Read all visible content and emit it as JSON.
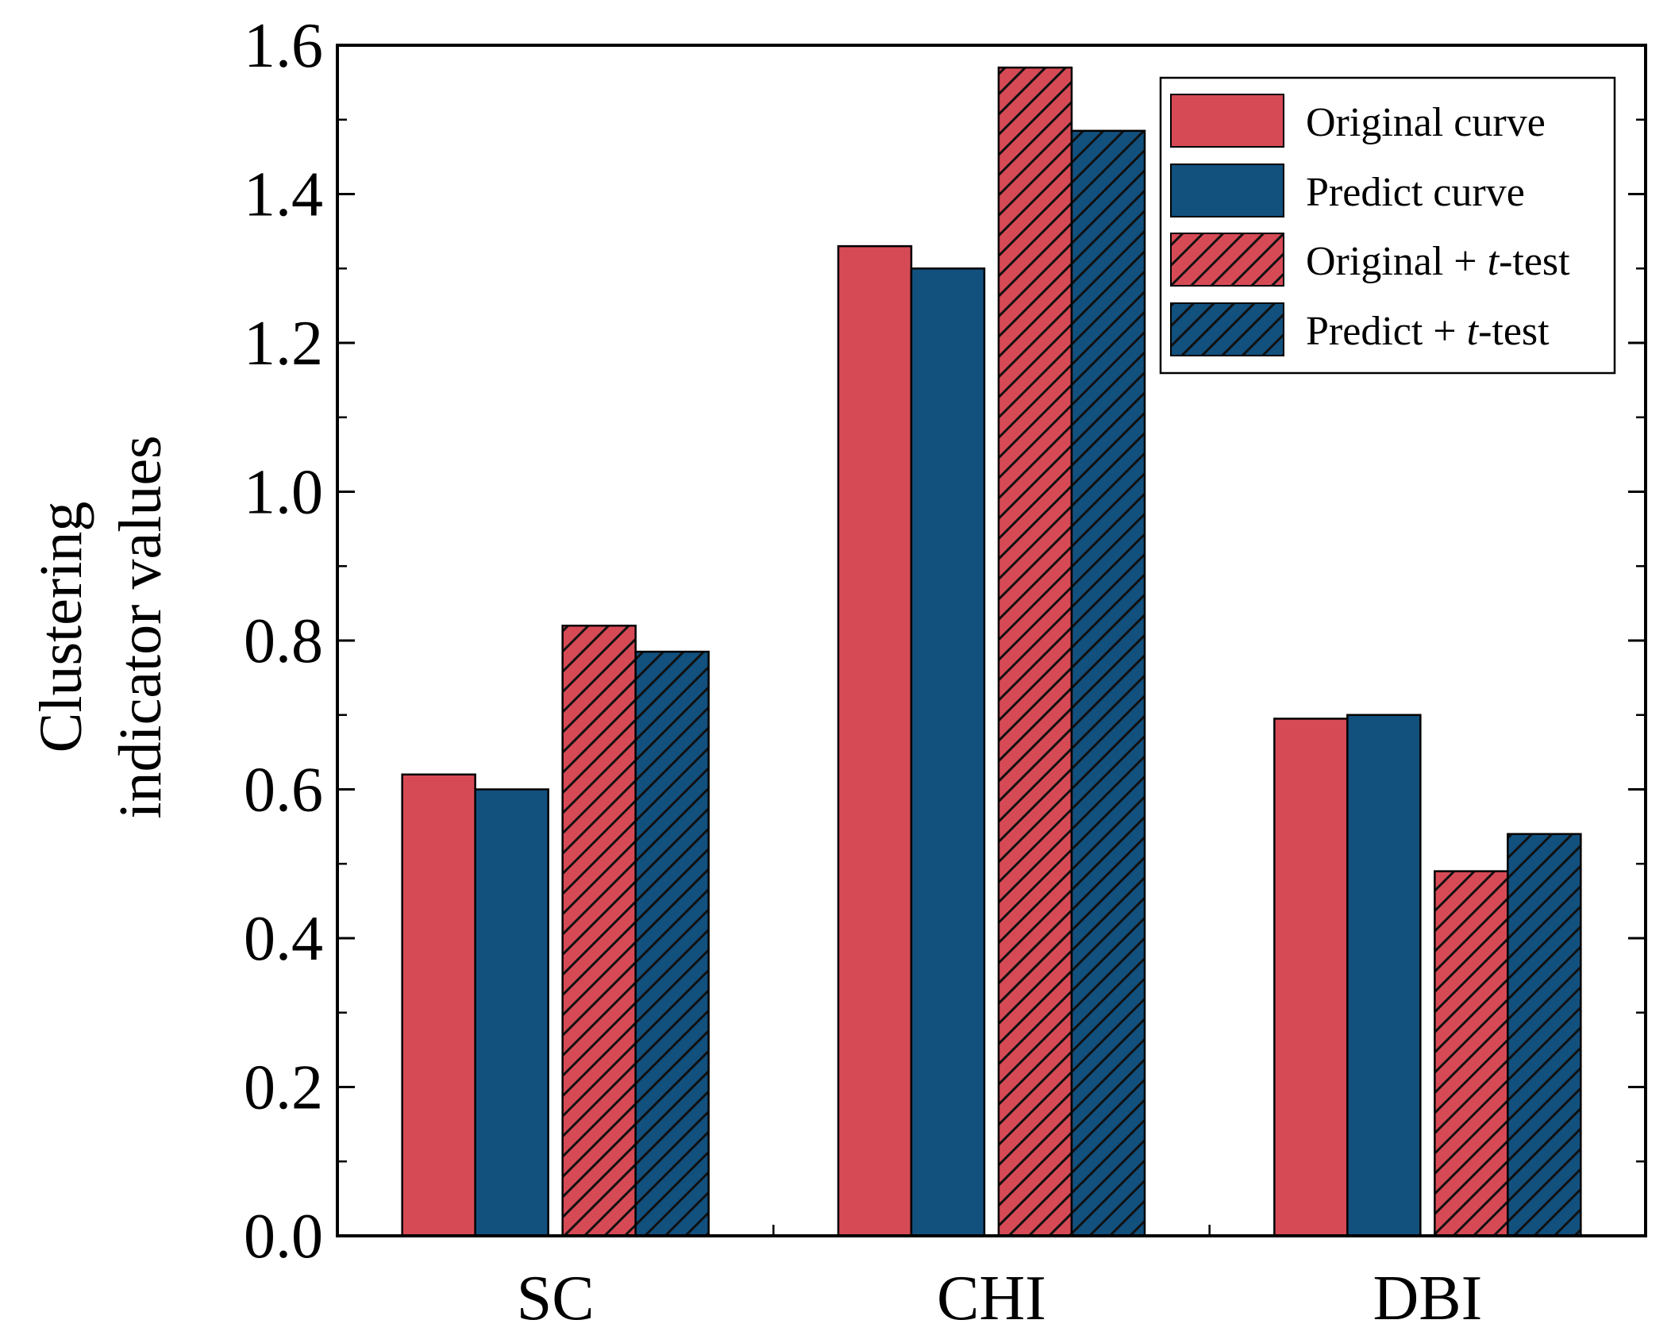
{
  "chart_data": {
    "type": "bar",
    "title": "",
    "xlabel": "",
    "ylabel": [
      "Clustering",
      "indicator values"
    ],
    "categories": [
      "SC",
      "CHI",
      "DBI"
    ],
    "series": [
      {
        "name": "Original curve",
        "legend": [
          "Original curve"
        ],
        "color": "#d64a56",
        "hatched": false,
        "values": [
          0.62,
          1.33,
          0.695
        ]
      },
      {
        "name": "Predict curve",
        "legend": [
          "Predict curve"
        ],
        "color": "#12507e",
        "hatched": false,
        "values": [
          0.6,
          1.3,
          0.7
        ]
      },
      {
        "name": "Original + t-test",
        "legend": [
          "Original + ",
          "t",
          "-test"
        ],
        "color": "#d64a56",
        "hatched": true,
        "values": [
          0.82,
          1.57,
          0.49
        ]
      },
      {
        "name": "Predict + t-test",
        "legend": [
          "Predict + ",
          "t",
          "-test"
        ],
        "color": "#12507e",
        "hatched": true,
        "values": [
          0.785,
          1.485,
          0.54
        ]
      }
    ],
    "ylim": [
      0.0,
      1.6
    ],
    "yticks": [
      "0.0",
      "0.2",
      "0.4",
      "0.6",
      "0.8",
      "1.0",
      "1.2",
      "1.4",
      "1.6"
    ],
    "grid": false,
    "legend_position": "top-right"
  }
}
